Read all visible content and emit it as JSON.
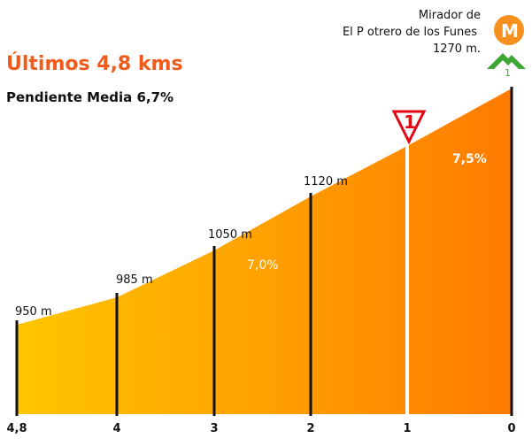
{
  "header": {
    "title": "Últimos 4,8 kms",
    "subtitle": "Pendiente Media 6,7%"
  },
  "summit": {
    "line1": "Mirador de",
    "line2": "El P otrero de los Funes",
    "line3": "1270 m.",
    "badge_letter": "M",
    "category": "1",
    "badge_color": "#f7901e",
    "mountain_color": "#3fa535"
  },
  "sprint_marker": {
    "label": "1",
    "color": "#e30613"
  },
  "chart_data": {
    "type": "area",
    "x": [
      4.8,
      4,
      3,
      2,
      1,
      0
    ],
    "x_tick_labels": [
      "4,8",
      "4",
      "3",
      "2",
      "1",
      "0"
    ],
    "altitude_labels": [
      "950 m",
      "985 m",
      "1050 m",
      "1120 m"
    ],
    "grade_labels": [
      "7,0%",
      "7,5%"
    ],
    "colors": {
      "start": "#ffc600",
      "end": "#ff7b00"
    }
  }
}
